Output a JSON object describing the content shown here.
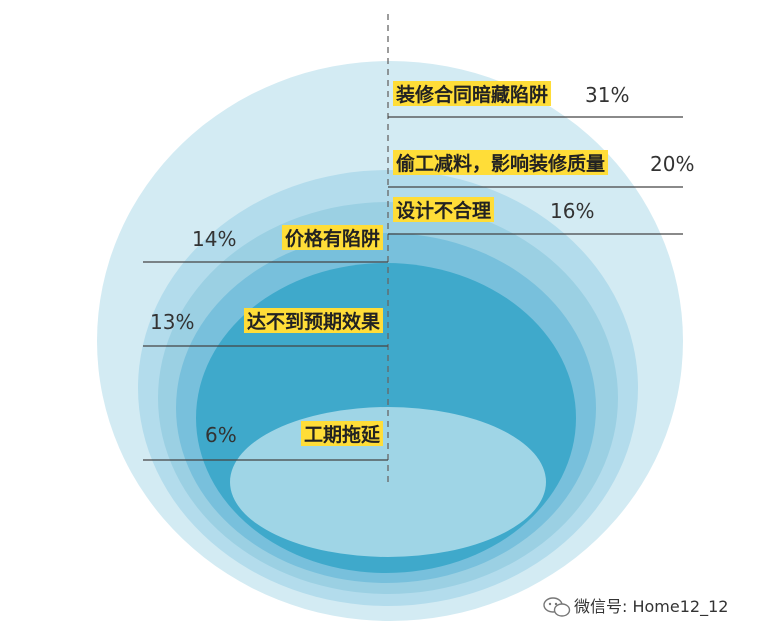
{
  "chart_data": {
    "type": "pie",
    "style": "nested-ellipses",
    "title": "",
    "categories": [
      "装修合同暗藏陷阱",
      "偷工减料，影响装修质量",
      "设计不合理",
      "价格有陷阱",
      "达不到预期效果",
      "工期拖延"
    ],
    "values": [
      31,
      20,
      16,
      14,
      13,
      6
    ],
    "value_labels": [
      "31%",
      "20%",
      "16%",
      "14%",
      "13%",
      "6%"
    ],
    "unit": "%",
    "label_sides": [
      "right",
      "right",
      "right",
      "left",
      "left",
      "left"
    ],
    "colors": [
      "#d3ebf3",
      "#b3dcec",
      "#9bd0e3",
      "#78c0dc",
      "#3fa9cb",
      "#9fd5e6"
    ],
    "label_highlight_color": "#ffdd38"
  },
  "watermark": {
    "icon": "wechat-icon",
    "text": "微信号: Home12_12"
  }
}
